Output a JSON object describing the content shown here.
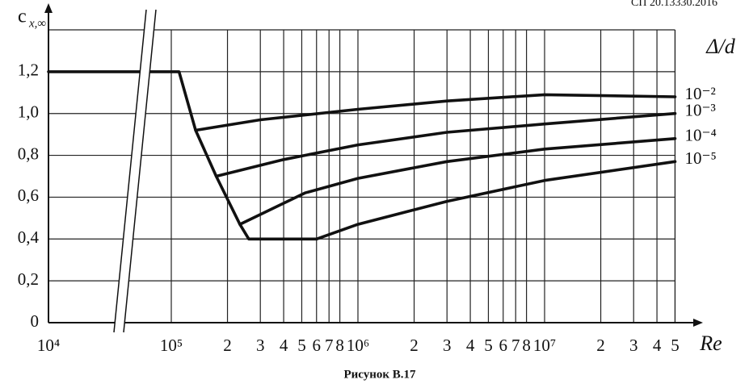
{
  "chart_data": {
    "type": "line",
    "header": "СП 20.13330.2016",
    "title": "Рисунок В.17",
    "ylabel": "c",
    "ylabel_subscript": "x,∞",
    "xlabel": "Re",
    "legend_title": "Δ/d",
    "xscale": "log",
    "grid": true,
    "xlim": [
      10000,
      50000000
    ],
    "ylim": [
      0,
      1.4
    ],
    "xticks": [
      {
        "value": 10000,
        "label": "10⁴"
      },
      {
        "value": 100000,
        "label": "10⁵"
      },
      {
        "value": 200000,
        "label": "2"
      },
      {
        "value": 300000,
        "label": "3"
      },
      {
        "value": 400000,
        "label": "4"
      },
      {
        "value": 500000,
        "label": "5"
      },
      {
        "value": 600000,
        "label": "6"
      },
      {
        "value": 700000,
        "label": "7"
      },
      {
        "value": 800000,
        "label": "8"
      },
      {
        "value": 1000000,
        "label": "10⁶"
      },
      {
        "value": 2000000,
        "label": "2"
      },
      {
        "value": 3000000,
        "label": "3"
      },
      {
        "value": 4000000,
        "label": "4"
      },
      {
        "value": 5000000,
        "label": "5"
      },
      {
        "value": 6000000,
        "label": "6"
      },
      {
        "value": 7000000,
        "label": "7"
      },
      {
        "value": 8000000,
        "label": "8"
      },
      {
        "value": 10000000,
        "label": "10⁷"
      },
      {
        "value": 20000000,
        "label": "2"
      },
      {
        "value": 30000000,
        "label": "3"
      },
      {
        "value": 40000000,
        "label": "4"
      },
      {
        "value": 50000000,
        "label": "5"
      }
    ],
    "yticks": [
      0,
      {
        "value": 0.2,
        "label": "0,2"
      },
      {
        "value": 0.4,
        "label": "0,4"
      },
      {
        "value": 0.6,
        "label": "0,6"
      },
      {
        "value": 0.8,
        "label": "0,8"
      },
      {
        "value": 1.0,
        "label": "1,0"
      },
      {
        "value": 1.2,
        "label": "1,2"
      }
    ],
    "base_curve": {
      "color": "#111",
      "x": [
        10000,
        110000,
        135000,
        174000,
        233000,
        260000,
        600000
      ],
      "values": [
        1.2,
        1.2,
        0.92,
        0.7,
        0.47,
        0.4,
        0.4
      ]
    },
    "series": [
      {
        "name": "10⁻²",
        "color": "#111",
        "x": [
          135000,
          300000,
          1000000,
          3000000,
          10000000,
          50000000
        ],
        "values": [
          0.92,
          0.97,
          1.02,
          1.06,
          1.09,
          1.08
        ]
      },
      {
        "name": "10⁻³",
        "color": "#111",
        "x": [
          174000,
          400000,
          1000000,
          3000000,
          10000000,
          50000000
        ],
        "values": [
          0.7,
          0.78,
          0.85,
          0.91,
          0.95,
          1.0
        ]
      },
      {
        "name": "10⁻⁴",
        "color": "#111",
        "x": [
          233000,
          520000,
          1000000,
          3000000,
          10000000,
          50000000
        ],
        "values": [
          0.47,
          0.62,
          0.69,
          0.77,
          0.83,
          0.88
        ]
      },
      {
        "name": "10⁻⁵",
        "color": "#111",
        "x": [
          600000,
          1000000,
          3000000,
          10000000,
          50000000
        ],
        "values": [
          0.4,
          0.47,
          0.58,
          0.68,
          0.77
        ]
      }
    ]
  }
}
